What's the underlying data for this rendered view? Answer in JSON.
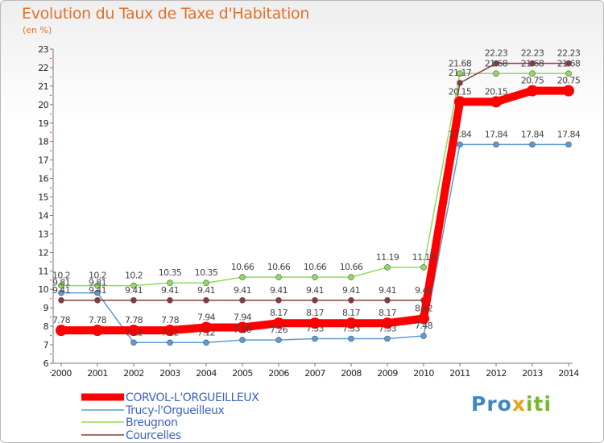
{
  "title": "Evolution du Taux de Taxe d'Habitation",
  "subtitle": "(en %)",
  "logo": {
    "part1": "Pro",
    "part2": "x",
    "part3": "iti"
  },
  "chart_data": {
    "type": "line",
    "title": "Evolution du Taux de Taxe d'Habitation",
    "ylabel": "(en %)",
    "xlabel": "",
    "ylim": [
      6,
      23
    ],
    "yticks": [
      6,
      7,
      8,
      9,
      10,
      11,
      12,
      13,
      14,
      15,
      16,
      17,
      18,
      19,
      20,
      21,
      22,
      23
    ],
    "grid": false,
    "legend": "bottom-left",
    "x": [
      "2000",
      "2001",
      "2002",
      "2003",
      "2004",
      "2005",
      "2006",
      "2007",
      "2008",
      "2009",
      "2010",
      "2011",
      "2012",
      "2013",
      "2014"
    ],
    "series": [
      {
        "name": "CORVOL-L'ORGUEILLEUX",
        "color": "#ff0000",
        "values": [
          7.78,
          7.78,
          7.78,
          7.78,
          7.94,
          7.94,
          8.17,
          8.17,
          8.17,
          8.17,
          8.42,
          20.15,
          20.15,
          20.75,
          20.75
        ],
        "labels": [
          "7.78",
          "7.78",
          "7.78",
          "7.78",
          "7.94",
          "7.94",
          "8.17",
          "8.17",
          "8.17",
          "8.17",
          "8.42",
          "20.15",
          "20.15",
          "20.75",
          "20.75"
        ]
      },
      {
        "name": "Trucy-l'Orgueilleux",
        "color": "#5b9bd5",
        "values": [
          9.81,
          9.81,
          7.12,
          7.12,
          7.12,
          7.26,
          7.26,
          7.33,
          7.33,
          7.33,
          7.48,
          17.84,
          17.84,
          17.84,
          17.84
        ],
        "labels": [
          "9.81",
          "9.81",
          "7.12",
          "7.12",
          "7.12",
          "7.26",
          "7.26",
          "7.33",
          "7.33",
          "7.33",
          "7.48",
          "17.84",
          "17.84",
          "17.84",
          "17.84"
        ]
      },
      {
        "name": "Breugnon",
        "color": "#8fdc5a",
        "values": [
          10.2,
          10.2,
          10.2,
          10.35,
          10.35,
          10.66,
          10.66,
          10.66,
          10.66,
          11.19,
          11.19,
          21.68,
          21.68,
          21.68,
          21.68
        ],
        "labels": [
          "10.2",
          "10.2",
          "10.2",
          "10.35",
          "10.35",
          "10.66",
          "10.66",
          "10.66",
          "10.66",
          "11.19",
          "11.19",
          "21.68",
          "21.68",
          "21.68",
          "21.68"
        ]
      },
      {
        "name": "Courcelles",
        "color": "#8a3a3a",
        "values": [
          9.41,
          9.41,
          9.41,
          9.41,
          9.41,
          9.41,
          9.41,
          9.41,
          9.41,
          9.41,
          9.41,
          21.17,
          22.23,
          22.23,
          22.23
        ],
        "labels": [
          "9.41",
          "9.41",
          "9.41",
          "9.41",
          "9.41",
          "9.41",
          "9.41",
          "9.41",
          "9.41",
          "9.41",
          "9.41",
          "21.17",
          "22.23",
          "22.23",
          "22.23"
        ]
      }
    ]
  }
}
